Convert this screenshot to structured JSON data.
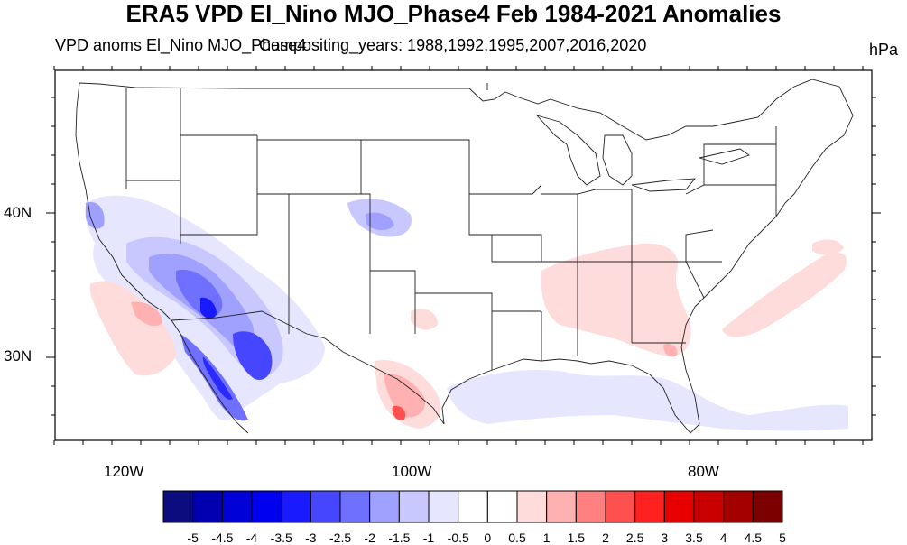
{
  "title": "ERA5 VPD El_Nino MJO_Phase4 Feb 1984-2021 Anomalies",
  "subtitle_left": "VPD anoms El_Nino MJO_Phase4",
  "subtitle_center": "Compositing_years: 1988,1992,1995,2007,2016,2020",
  "units": "hPa",
  "axes": {
    "lat_labels": [
      "40N",
      "30N"
    ],
    "lon_labels": [
      "120W",
      "100W",
      "80W"
    ]
  },
  "colorbar": {
    "labels": [
      "-5",
      "-4.5",
      "-4",
      "-3.5",
      "-3",
      "-2.5",
      "-2",
      "-1.5",
      "-1",
      "-0.5",
      "0",
      "0.5",
      "1",
      "1.5",
      "2",
      "2.5",
      "3",
      "3.5",
      "4",
      "4.5",
      "5"
    ],
    "colors": [
      "#0c0c7e",
      "#0000b0",
      "#0000d8",
      "#0000f0",
      "#1a1aff",
      "#4646ff",
      "#7070ff",
      "#a0a0ff",
      "#c8c8ff",
      "#e6e6ff",
      "#ffffff",
      "#ffffff",
      "#ffdcdc",
      "#ffb0b0",
      "#ff8080",
      "#ff5050",
      "#ff2020",
      "#e80000",
      "#c80000",
      "#a40000",
      "#7c0000"
    ]
  }
}
